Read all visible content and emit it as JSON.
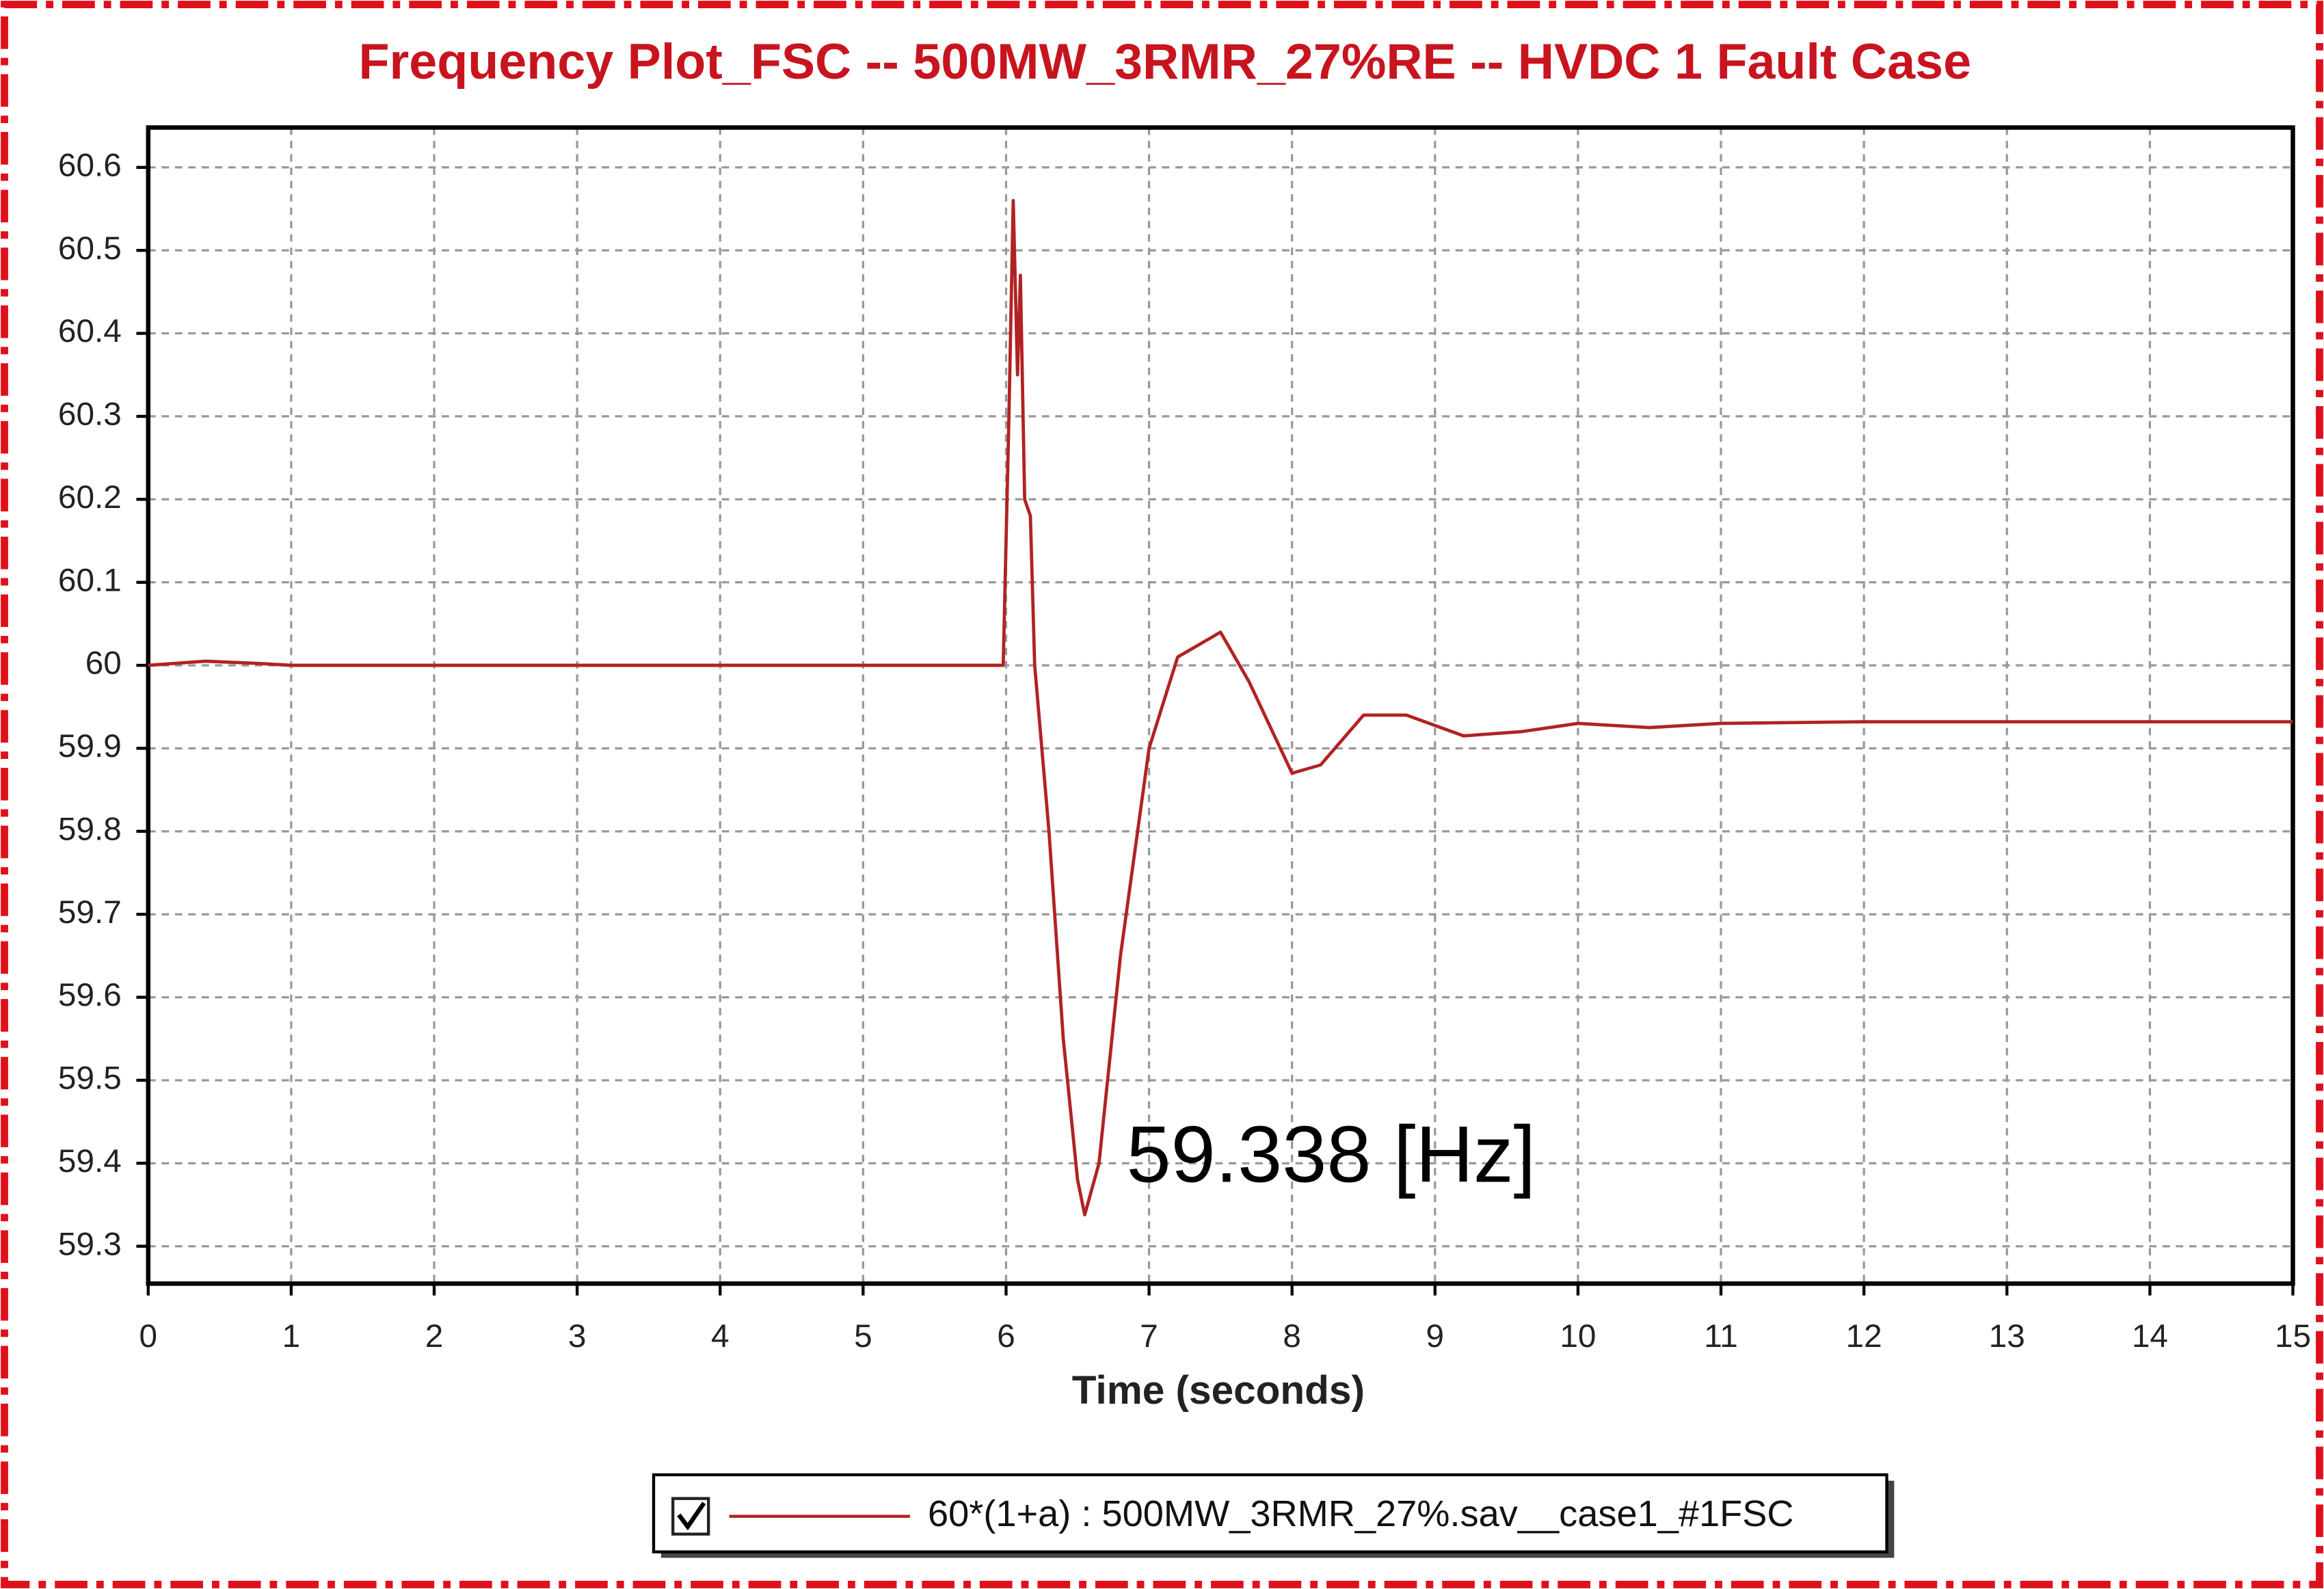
{
  "chart_data": {
    "type": "line",
    "title": "Frequency Plot_FSC -- 500MW_3RMR_27%RE -- HVDC 1 Fault Case",
    "xlabel": "Time (seconds)",
    "annotation": "59.338 [Hz]",
    "x": [
      0,
      0.4,
      0.8,
      1,
      5.98,
      6.02,
      6.05,
      6.08,
      6.1,
      6.13,
      6.17,
      6.2,
      6.3,
      6.4,
      6.5,
      6.55,
      6.65,
      6.8,
      7.0,
      7.2,
      7.5,
      7.7,
      8.0,
      8.2,
      8.5,
      8.8,
      9.2,
      9.6,
      10,
      10.5,
      11,
      12,
      13,
      15
    ],
    "series": [
      {
        "name": "60*(1+a) : 500MW_3RMR_27%.sav__case1_#1FSC",
        "color": "#b22222",
        "values": [
          60,
          60.005,
          60.002,
          60,
          60,
          60.3,
          60.56,
          60.35,
          60.47,
          60.2,
          60.18,
          60.0,
          59.8,
          59.55,
          59.38,
          59.338,
          59.4,
          59.65,
          59.9,
          60.01,
          60.04,
          59.98,
          59.87,
          59.88,
          59.94,
          59.94,
          59.915,
          59.92,
          59.93,
          59.925,
          59.93,
          59.932,
          59.932,
          59.932
        ]
      }
    ],
    "xlim": [
      0,
      15
    ],
    "xticks": [
      0,
      1,
      2,
      3,
      4,
      5,
      6,
      7,
      8,
      9,
      10,
      11,
      12,
      13,
      14,
      15
    ],
    "ylim": [
      59.255,
      60.648
    ],
    "yticks": [
      59.3,
      59.4,
      59.5,
      59.6,
      59.7,
      59.8,
      59.9,
      60,
      60.1,
      60.2,
      60.3,
      60.4,
      60.5,
      60.6
    ],
    "grid": true
  }
}
